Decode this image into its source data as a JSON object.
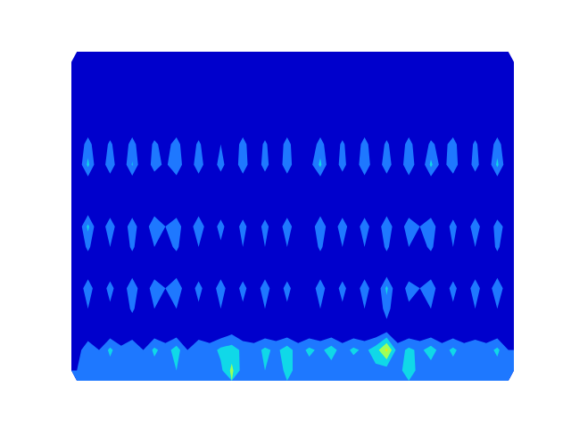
{
  "chart_data": {
    "type": "contour",
    "tick_labels": false,
    "levels": [
      0,
      0.2,
      0.4,
      0.6,
      0.8
    ],
    "colors": [
      "#0000cc",
      "#1e78ff",
      "#10d8e8",
      "#9cff5a",
      "#ffe600"
    ],
    "z": [
      [
        0,
        0,
        0,
        0,
        0,
        0,
        0,
        0,
        0,
        0,
        0,
        0,
        0,
        0,
        0,
        0,
        0,
        0,
        0,
        0,
        0,
        0,
        0,
        0,
        0,
        0,
        0,
        0,
        0,
        0,
        0,
        0,
        0,
        0,
        0,
        0,
        0,
        0,
        0,
        0
      ],
      [
        0,
        0,
        0,
        0,
        0,
        0,
        0,
        0,
        0,
        0,
        0,
        0,
        0,
        0,
        0,
        0,
        0,
        0,
        0,
        0,
        0,
        0,
        0,
        0,
        0,
        0,
        0,
        0,
        0,
        0,
        0,
        0,
        0,
        0,
        0,
        0,
        0,
        0,
        0,
        0
      ],
      [
        0,
        0,
        0,
        0,
        0,
        0,
        0,
        0,
        0,
        0,
        0,
        0,
        0,
        0,
        0,
        0,
        0,
        0,
        0,
        0,
        0,
        0,
        0,
        0,
        0,
        0,
        0,
        0,
        0,
        0,
        0,
        0,
        0,
        0,
        0,
        0,
        0,
        0,
        0,
        0
      ],
      [
        0,
        0,
        0,
        0,
        0,
        0,
        0,
        0,
        0,
        0,
        0,
        0,
        0,
        0,
        0,
        0,
        0,
        0,
        0,
        0,
        0,
        0,
        0,
        0,
        0,
        0,
        0,
        0,
        0,
        0,
        0,
        0,
        0,
        0,
        0,
        0,
        0,
        0,
        0,
        0
      ],
      [
        0,
        0.3,
        0,
        0.25,
        0,
        0.3,
        0,
        0.25,
        0.1,
        0.3,
        0,
        0.25,
        0,
        0.2,
        0,
        0.3,
        0,
        0.25,
        0,
        0.3,
        0,
        0,
        0.3,
        0,
        0.25,
        0,
        0.3,
        0,
        0.25,
        0,
        0.3,
        0,
        0.25,
        0.1,
        0.3,
        0,
        0.25,
        0,
        0.3,
        0
      ],
      [
        0,
        0.45,
        0,
        0.35,
        0,
        0.42,
        0,
        0.3,
        0.15,
        0.4,
        0,
        0.35,
        0,
        0.3,
        0,
        0.35,
        0,
        0.3,
        0,
        0.35,
        0,
        0.1,
        0.45,
        0,
        0.3,
        0,
        0.4,
        0,
        0.35,
        0,
        0.4,
        0,
        0.45,
        0.1,
        0.35,
        0,
        0.3,
        0,
        0.45,
        0
      ],
      [
        0,
        0,
        0,
        0,
        0,
        0,
        0,
        0,
        0,
        0,
        0,
        0,
        0,
        0,
        0,
        0,
        0,
        0,
        0,
        0,
        0,
        0,
        0,
        0,
        0,
        0,
        0,
        0,
        0,
        0,
        0,
        0,
        0,
        0,
        0,
        0,
        0,
        0,
        0,
        0
      ],
      [
        0,
        0,
        0,
        0,
        0,
        0,
        0,
        0,
        0,
        0,
        0,
        0,
        0,
        0,
        0,
        0,
        0,
        0,
        0,
        0,
        0,
        0,
        0,
        0,
        0,
        0,
        0,
        0,
        0,
        0,
        0,
        0,
        0,
        0,
        0,
        0,
        0,
        0,
        0,
        0
      ],
      [
        0,
        0.45,
        0,
        0.35,
        0,
        0.35,
        0,
        0.4,
        0.2,
        0.35,
        0,
        0.4,
        0,
        0.3,
        0,
        0.3,
        0,
        0.3,
        0,
        0.35,
        0,
        0,
        0.4,
        0,
        0.35,
        0,
        0.35,
        0,
        0.4,
        0,
        0.35,
        0.2,
        0.35,
        0,
        0.3,
        0,
        0.35,
        0,
        0.3,
        0.1
      ],
      [
        0,
        0.25,
        0,
        0.2,
        0,
        0.25,
        0,
        0.2,
        0.1,
        0.25,
        0,
        0.2,
        0,
        0.15,
        0,
        0.2,
        0,
        0.2,
        0,
        0.2,
        0,
        0,
        0.25,
        0,
        0.2,
        0,
        0.2,
        0,
        0.25,
        0,
        0.2,
        0.1,
        0.25,
        0,
        0.2,
        0,
        0.2,
        0,
        0.25,
        0
      ],
      [
        0,
        0,
        0,
        0,
        0,
        0,
        0,
        0,
        0,
        0,
        0,
        0,
        0,
        0,
        0,
        0,
        0,
        0,
        0,
        0,
        0,
        0,
        0,
        0,
        0,
        0,
        0,
        0,
        0,
        0,
        0,
        0,
        0,
        0,
        0,
        0,
        0,
        0,
        0,
        0
      ],
      [
        0,
        0.35,
        0,
        0.3,
        0,
        0.4,
        0,
        0.35,
        0.2,
        0.4,
        0,
        0.3,
        0,
        0.35,
        0,
        0.3,
        0,
        0.35,
        0,
        0.3,
        0,
        0,
        0.35,
        0,
        0.3,
        0,
        0.35,
        0,
        0.45,
        0,
        0.3,
        0.2,
        0.35,
        0,
        0.3,
        0,
        0.35,
        0,
        0.4,
        0
      ],
      [
        0,
        0.2,
        0,
        0.15,
        0,
        0.25,
        0,
        0.2,
        0.1,
        0.2,
        0,
        0.15,
        0,
        0.2,
        0,
        0.15,
        0,
        0.2,
        0,
        0.15,
        0,
        0,
        0.2,
        0,
        0.15,
        0,
        0.2,
        0,
        0.3,
        0,
        0.15,
        0.1,
        0.2,
        0,
        0.15,
        0,
        0.2,
        0,
        0.2,
        0
      ],
      [
        0,
        0,
        0,
        0,
        0,
        0,
        0,
        0,
        0,
        0,
        0,
        0,
        0,
        0,
        0.1,
        0,
        0,
        0,
        0,
        0,
        0,
        0,
        0,
        0,
        0,
        0,
        0,
        0,
        0.1,
        0,
        0,
        0,
        0,
        0,
        0,
        0,
        0,
        0,
        0,
        0
      ],
      [
        0.1,
        0.35,
        0.2,
        0.45,
        0.25,
        0.4,
        0.2,
        0.45,
        0.3,
        0.5,
        0.2,
        0.4,
        0.3,
        0.45,
        0.5,
        0.35,
        0.3,
        0.45,
        0.35,
        0.5,
        0.3,
        0.45,
        0.35,
        0.5,
        0.3,
        0.45,
        0.35,
        0.5,
        0.85,
        0.3,
        0.45,
        0.35,
        0.5,
        0.3,
        0.45,
        0.3,
        0.4,
        0.3,
        0.45,
        0.2
      ],
      [
        0.2,
        0.3,
        0.25,
        0.3,
        0.2,
        0.35,
        0.25,
        0.3,
        0.2,
        0.4,
        0.25,
        0.3,
        0.25,
        0.35,
        0.65,
        0.3,
        0.25,
        0.4,
        0.3,
        0.45,
        0.35,
        0.3,
        0.25,
        0.3,
        0.3,
        0.25,
        0.3,
        0.35,
        0.3,
        0.3,
        0.55,
        0.3,
        0.3,
        0.25,
        0.3,
        0.25,
        0.3,
        0.25,
        0.3,
        0.25
      ]
    ]
  }
}
